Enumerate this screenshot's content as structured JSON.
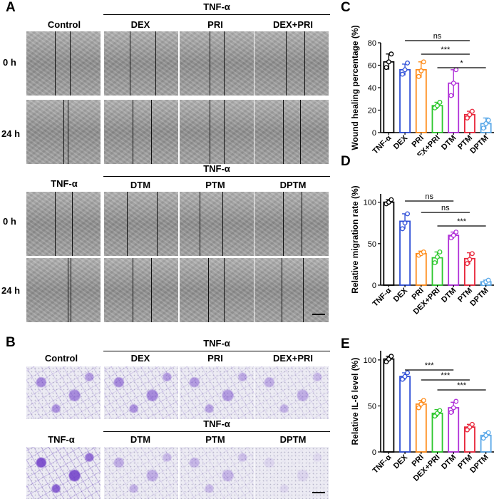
{
  "panels": {
    "A": "A",
    "B": "B",
    "C": "C",
    "D": "D",
    "E": "E"
  },
  "panelA": {
    "top_groups": {
      "control": "Control",
      "tnf": "TNF-α",
      "cols": [
        "DEX",
        "PRI",
        "DEX+PRI"
      ]
    },
    "bottom_groups": {
      "control": "TNF-α",
      "tnf": "TNF-α",
      "cols": [
        "DTM",
        "PTM",
        "DPTM"
      ]
    },
    "rows": [
      "0 h",
      "24 h"
    ]
  },
  "panelB": {
    "top_groups": {
      "control": "Control",
      "tnf": "TNF-α",
      "cols": [
        "DEX",
        "PRI",
        "DEX+PRI"
      ]
    },
    "bottom_groups": {
      "control": "TNF-α",
      "tnf": "TNF-α",
      "cols": [
        "DTM",
        "PTM",
        "DPTM"
      ]
    }
  },
  "chart_data": [
    {
      "type": "bar",
      "panel": "C",
      "categories": [
        "TNF-α",
        "DEX",
        "PRI",
        "DEX+PRI",
        "DTM",
        "PTM",
        "DPTM"
      ],
      "values": [
        63,
        56,
        56,
        24,
        44,
        16,
        8
      ],
      "errors": [
        7,
        5,
        7,
        3,
        12,
        3,
        5
      ],
      "points": [
        [
          58,
          63,
          70
        ],
        [
          52,
          56,
          62
        ],
        [
          50,
          55,
          63
        ],
        [
          22,
          24,
          27
        ],
        [
          33,
          44,
          56
        ],
        [
          13,
          16,
          19
        ],
        [
          4,
          8,
          11
        ]
      ],
      "colors": [
        "#000000",
        "#3050d8",
        "#ff8c1a",
        "#2ec82e",
        "#b030d8",
        "#e8283c",
        "#5aa8e8"
      ],
      "ylabel": "Wound healing percentage (%)",
      "ylim": [
        0,
        80
      ],
      "yticks": [
        0,
        20,
        40,
        60,
        80
      ],
      "significance": [
        {
          "from": 1,
          "to": 5,
          "label": "ns"
        },
        {
          "from": 2,
          "to": 5,
          "label": "***"
        },
        {
          "from": 3,
          "to": 6,
          "label": "*"
        }
      ]
    },
    {
      "type": "bar",
      "panel": "D",
      "categories": [
        "TNF-α",
        "DEX",
        "PRI",
        "DEX+PRI",
        "DTM",
        "PTM",
        "DPTM"
      ],
      "values": [
        100,
        77,
        38,
        33,
        60,
        32,
        4
      ],
      "errors": [
        3,
        9,
        3,
        7,
        4,
        7,
        2
      ],
      "points": [
        [
          98,
          100,
          103
        ],
        [
          68,
          75,
          86
        ],
        [
          36,
          38,
          40
        ],
        [
          27,
          34,
          40
        ],
        [
          57,
          60,
          64
        ],
        [
          26,
          31,
          38
        ],
        [
          2,
          4,
          6
        ]
      ],
      "colors": [
        "#000000",
        "#3050d8",
        "#ff8c1a",
        "#2ec82e",
        "#b030d8",
        "#e8283c",
        "#5aa8e8"
      ],
      "ylabel": "Relative migration rate (%)",
      "ylim": [
        0,
        110
      ],
      "yticks": [
        0,
        50,
        100
      ],
      "significance": [
        {
          "from": 1,
          "to": 4,
          "label": "ns"
        },
        {
          "from": 2,
          "to": 5,
          "label": "ns"
        },
        {
          "from": 3,
          "to": 6,
          "label": "***"
        }
      ]
    },
    {
      "type": "bar",
      "panel": "E",
      "categories": [
        "TNF-α",
        "DEX",
        "PRI",
        "DEX+PRI",
        "DTM",
        "PTM",
        "DPTM"
      ],
      "values": [
        101,
        82,
        52,
        42,
        48,
        27,
        18
      ],
      "errors": [
        3,
        4,
        4,
        4,
        6,
        3,
        3
      ],
      "points": [
        [
          98,
          101,
          104
        ],
        [
          79,
          82,
          86
        ],
        [
          48,
          52,
          56
        ],
        [
          39,
          42,
          45
        ],
        [
          43,
          48,
          55
        ],
        [
          24,
          27,
          30
        ],
        [
          15,
          18,
          21
        ]
      ],
      "colors": [
        "#000000",
        "#3050d8",
        "#ff8c1a",
        "#2ec82e",
        "#b030d8",
        "#e8283c",
        "#5aa8e8"
      ],
      "ylabel": "Relative IL-6 level (%)",
      "ylim": [
        0,
        110
      ],
      "yticks": [
        0,
        50,
        100
      ],
      "significance": [
        {
          "from": 1,
          "to": 4,
          "label": "***"
        },
        {
          "from": 2,
          "to": 5,
          "label": "***"
        },
        {
          "from": 3,
          "to": 6,
          "label": "***"
        }
      ]
    }
  ]
}
